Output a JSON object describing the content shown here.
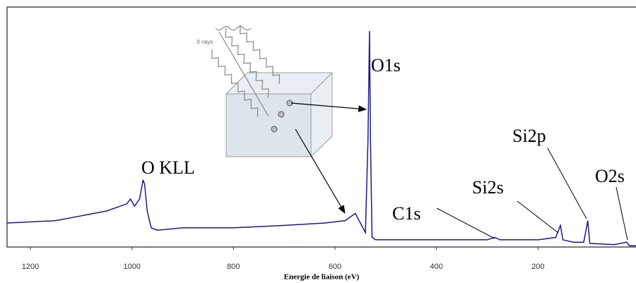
{
  "chart_data": {
    "type": "line",
    "x_label": "Energie de liaison (eV)",
    "x": [
      1246,
      1150,
      1100,
      1050,
      1010,
      1003,
      995,
      985,
      978,
      975,
      970,
      962,
      950,
      900,
      800,
      700,
      620,
      580,
      560,
      550,
      540,
      535,
      532,
      530,
      527,
      520,
      500,
      400,
      300,
      285,
      275,
      200,
      165,
      156,
      151,
      130,
      110,
      102,
      98,
      50,
      25,
      20,
      7
    ],
    "series": [
      {
        "color": "#1a1a8c",
        "values": [
          10,
          11,
          13,
          15,
          18,
          20,
          17,
          20,
          28,
          26,
          15,
          8,
          7,
          8,
          8,
          9,
          10,
          11,
          14,
          10,
          6,
          44,
          90,
          44,
          4,
          3,
          3,
          3,
          3,
          4,
          3,
          3,
          4,
          9,
          3,
          2,
          2,
          11,
          1.5,
          1,
          2,
          0.5,
          0.5
        ]
      }
    ],
    "xlim": [
      1246,
      7
    ],
    "ylim": [
      0,
      100
    ],
    "xticks": [
      1200,
      1000,
      800,
      600,
      400,
      200
    ],
    "annotations": [
      {
        "text": "O1s"
      },
      {
        "text": "Si2p"
      },
      {
        "text": "Si2s"
      },
      {
        "text": "C1s"
      },
      {
        "text": "O2s"
      },
      {
        "text": "O KLL"
      }
    ],
    "inset_label": "X-rays"
  }
}
